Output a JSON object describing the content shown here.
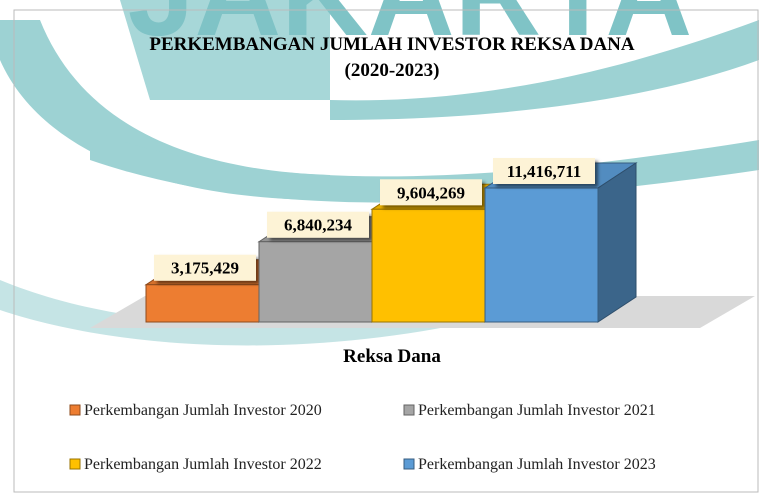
{
  "chart_data": {
    "type": "bar",
    "watermark": "JAKARTA",
    "title": [
      "PERKEMBANGAN JUMLAH INVESTOR REKSA DANA",
      "(2020-2023)"
    ],
    "categories": [
      "Reksa Dana"
    ],
    "series": [
      {
        "name": "Perkembangan Jumlah Investor 2020",
        "color": "#ed7d31",
        "values": [
          3175429
        ],
        "value_labels": [
          "3,175,429"
        ]
      },
      {
        "name": "Perkembangan Jumlah Investor 2021",
        "color": "#a5a5a5",
        "values": [
          6840234
        ],
        "value_labels": [
          "6,840,234"
        ]
      },
      {
        "name": "Perkembangan Jumlah Investor 2022",
        "color": "#ffc000",
        "values": [
          9604269
        ],
        "value_labels": [
          "9,604,269"
        ]
      },
      {
        "name": "Perkembangan Jumlah Investor 2023",
        "color": "#5b9bd5",
        "values": [
          11416711
        ],
        "value_labels": [
          "11,416,711"
        ]
      }
    ]
  }
}
